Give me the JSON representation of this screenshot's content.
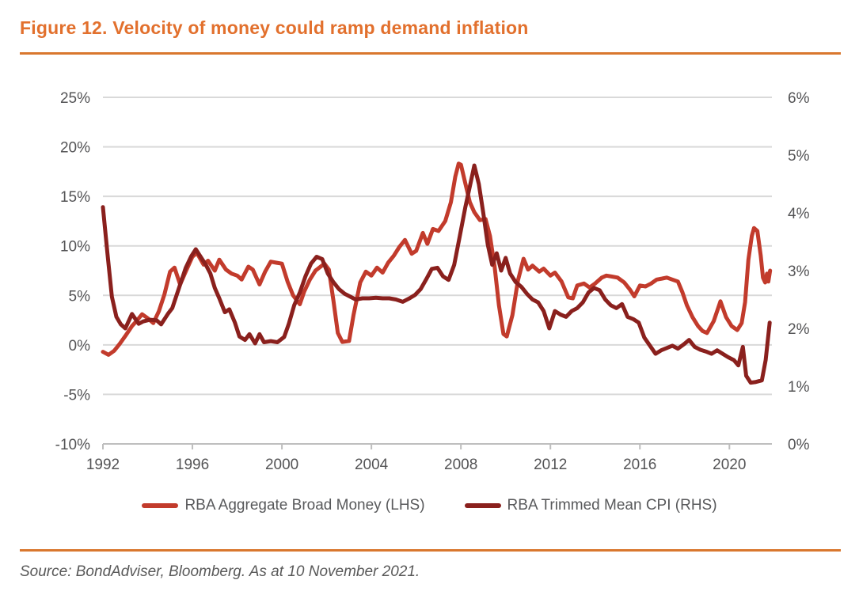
{
  "header": {
    "title": "Figure 12. Velocity of money could ramp demand inflation"
  },
  "footer": {
    "source": "Source: BondAdviser, Bloomberg. As at 10 November 2021."
  },
  "colors": {
    "accent_orange": "#E2702D",
    "rule_orange": "#D9772E",
    "axis_text": "#545456",
    "legend_text": "#58595B",
    "gridline": "#D9D9D9",
    "axis_line": "#BEBEBE",
    "background": "#FFFFFF"
  },
  "chart_data": {
    "type": "line",
    "title": "Figure 12. Velocity of money could ramp demand inflation",
    "grid": "horizontal",
    "legend_position": "bottom",
    "x_axis": {
      "range": [
        1992,
        2021.9
      ],
      "tick_values": [
        1992,
        1996,
        2000,
        2004,
        2008,
        2012,
        2016,
        2020
      ],
      "tick_labels": [
        "1992",
        "1996",
        "2000",
        "2004",
        "2008",
        "2012",
        "2016",
        "2020"
      ]
    },
    "left_axis": {
      "range": [
        -10,
        25
      ],
      "tick_values": [
        25,
        20,
        15,
        10,
        5,
        0,
        -5,
        -10
      ],
      "tick_labels": [
        "25%",
        "20%",
        "15%",
        "10%",
        "5%",
        "0%",
        "-5%",
        "-10%"
      ]
    },
    "right_axis": {
      "range": [
        0,
        6
      ],
      "tick_values": [
        6,
        5,
        4,
        3,
        2,
        1,
        0
      ],
      "tick_labels": [
        "6%",
        "5%",
        "4%",
        "3%",
        "2%",
        "1%",
        "0%"
      ]
    },
    "series": [
      {
        "name": "RBA Aggregate Broad Money (LHS)",
        "axis": "left",
        "color": "#C23B2C",
        "points": [
          [
            1992.0,
            -0.7
          ],
          [
            1992.25,
            -1.0
          ],
          [
            1992.5,
            -0.6
          ],
          [
            1992.75,
            0.1
          ],
          [
            1993.0,
            0.9
          ],
          [
            1993.3,
            1.9
          ],
          [
            1993.5,
            2.4
          ],
          [
            1993.75,
            3.1
          ],
          [
            1994.0,
            2.7
          ],
          [
            1994.25,
            2.2
          ],
          [
            1994.5,
            3.4
          ],
          [
            1994.75,
            5.1
          ],
          [
            1995.0,
            7.4
          ],
          [
            1995.2,
            7.8
          ],
          [
            1995.45,
            6.1
          ],
          [
            1995.7,
            7.4
          ],
          [
            1996.0,
            8.9
          ],
          [
            1996.2,
            9.3
          ],
          [
            1996.5,
            8.1
          ],
          [
            1996.7,
            8.5
          ],
          [
            1997.0,
            7.5
          ],
          [
            1997.2,
            8.6
          ],
          [
            1997.5,
            7.6
          ],
          [
            1997.75,
            7.2
          ],
          [
            1998.0,
            7.0
          ],
          [
            1998.2,
            6.6
          ],
          [
            1998.5,
            7.9
          ],
          [
            1998.7,
            7.6
          ],
          [
            1999.0,
            6.1
          ],
          [
            1999.25,
            7.4
          ],
          [
            1999.5,
            8.4
          ],
          [
            1999.75,
            8.3
          ],
          [
            2000.0,
            8.2
          ],
          [
            2000.25,
            6.4
          ],
          [
            2000.5,
            5.0
          ],
          [
            2000.8,
            4.1
          ],
          [
            2001.0,
            5.4
          ],
          [
            2001.25,
            6.6
          ],
          [
            2001.5,
            7.5
          ],
          [
            2001.9,
            8.2
          ],
          [
            2002.1,
            7.6
          ],
          [
            2002.3,
            4.5
          ],
          [
            2002.5,
            1.2
          ],
          [
            2002.7,
            0.3
          ],
          [
            2003.0,
            0.4
          ],
          [
            2003.2,
            3.0
          ],
          [
            2003.5,
            6.3
          ],
          [
            2003.75,
            7.4
          ],
          [
            2004.0,
            7.0
          ],
          [
            2004.25,
            7.8
          ],
          [
            2004.5,
            7.3
          ],
          [
            2004.75,
            8.3
          ],
          [
            2005.0,
            9.0
          ],
          [
            2005.25,
            9.9
          ],
          [
            2005.5,
            10.6
          ],
          [
            2005.8,
            9.2
          ],
          [
            2006.0,
            9.5
          ],
          [
            2006.3,
            11.3
          ],
          [
            2006.5,
            10.2
          ],
          [
            2006.75,
            11.7
          ],
          [
            2007.0,
            11.5
          ],
          [
            2007.3,
            12.5
          ],
          [
            2007.55,
            14.4
          ],
          [
            2007.75,
            17.0
          ],
          [
            2007.9,
            18.3
          ],
          [
            2008.0,
            18.2
          ],
          [
            2008.2,
            16.3
          ],
          [
            2008.4,
            14.4
          ],
          [
            2008.6,
            13.4
          ],
          [
            2008.85,
            12.6
          ],
          [
            2009.1,
            12.7
          ],
          [
            2009.3,
            11.0
          ],
          [
            2009.5,
            8.0
          ],
          [
            2009.7,
            4.0
          ],
          [
            2009.9,
            1.1
          ],
          [
            2010.05,
            0.85
          ],
          [
            2010.3,
            3.0
          ],
          [
            2010.55,
            6.5
          ],
          [
            2010.8,
            8.7
          ],
          [
            2011.0,
            7.6
          ],
          [
            2011.2,
            8.0
          ],
          [
            2011.5,
            7.4
          ],
          [
            2011.7,
            7.7
          ],
          [
            2012.0,
            7.0
          ],
          [
            2012.2,
            7.3
          ],
          [
            2012.5,
            6.4
          ],
          [
            2012.8,
            4.8
          ],
          [
            2013.0,
            4.7
          ],
          [
            2013.2,
            6.0
          ],
          [
            2013.5,
            6.2
          ],
          [
            2013.75,
            5.8
          ],
          [
            2014.0,
            6.2
          ],
          [
            2014.3,
            6.8
          ],
          [
            2014.5,
            7.0
          ],
          [
            2014.75,
            6.9
          ],
          [
            2015.0,
            6.8
          ],
          [
            2015.3,
            6.3
          ],
          [
            2015.55,
            5.6
          ],
          [
            2015.75,
            4.9
          ],
          [
            2016.0,
            6.0
          ],
          [
            2016.25,
            5.9
          ],
          [
            2016.5,
            6.2
          ],
          [
            2016.75,
            6.6
          ],
          [
            2017.0,
            6.7
          ],
          [
            2017.2,
            6.8
          ],
          [
            2017.45,
            6.6
          ],
          [
            2017.7,
            6.4
          ],
          [
            2017.9,
            5.3
          ],
          [
            2018.1,
            4.0
          ],
          [
            2018.35,
            2.8
          ],
          [
            2018.6,
            1.9
          ],
          [
            2018.8,
            1.4
          ],
          [
            2019.0,
            1.2
          ],
          [
            2019.3,
            2.4
          ],
          [
            2019.6,
            4.4
          ],
          [
            2019.85,
            2.8
          ],
          [
            2020.1,
            1.9
          ],
          [
            2020.35,
            1.5
          ],
          [
            2020.55,
            2.2
          ],
          [
            2020.7,
            4.3
          ],
          [
            2020.85,
            8.6
          ],
          [
            2021.0,
            11.0
          ],
          [
            2021.1,
            11.8
          ],
          [
            2021.25,
            11.5
          ],
          [
            2021.4,
            9.0
          ],
          [
            2021.5,
            6.8
          ],
          [
            2021.6,
            6.3
          ],
          [
            2021.68,
            7.2
          ],
          [
            2021.74,
            6.4
          ],
          [
            2021.82,
            7.5
          ]
        ]
      },
      {
        "name": "RBA Trimmed Mean CPI (RHS)",
        "axis": "right",
        "color": "#8A201D",
        "points": [
          [
            1992.0,
            4.1
          ],
          [
            1992.2,
            3.3
          ],
          [
            1992.4,
            2.55
          ],
          [
            1992.6,
            2.2
          ],
          [
            1992.8,
            2.07
          ],
          [
            1993.0,
            2.0
          ],
          [
            1993.3,
            2.25
          ],
          [
            1993.6,
            2.08
          ],
          [
            1993.8,
            2.12
          ],
          [
            1994.1,
            2.15
          ],
          [
            1994.4,
            2.14
          ],
          [
            1994.6,
            2.07
          ],
          [
            1994.9,
            2.25
          ],
          [
            1995.1,
            2.35
          ],
          [
            1995.4,
            2.7
          ],
          [
            1995.7,
            3.05
          ],
          [
            1995.95,
            3.25
          ],
          [
            1996.15,
            3.37
          ],
          [
            1996.4,
            3.22
          ],
          [
            1996.6,
            3.1
          ],
          [
            1996.8,
            2.95
          ],
          [
            1997.0,
            2.7
          ],
          [
            1997.2,
            2.52
          ],
          [
            1997.45,
            2.28
          ],
          [
            1997.65,
            2.33
          ],
          [
            1997.9,
            2.1
          ],
          [
            1998.1,
            1.86
          ],
          [
            1998.35,
            1.8
          ],
          [
            1998.55,
            1.9
          ],
          [
            1998.8,
            1.74
          ],
          [
            1999.0,
            1.9
          ],
          [
            1999.2,
            1.76
          ],
          [
            1999.5,
            1.78
          ],
          [
            1999.8,
            1.76
          ],
          [
            2000.1,
            1.85
          ],
          [
            2000.3,
            2.07
          ],
          [
            2000.55,
            2.4
          ],
          [
            2000.8,
            2.62
          ],
          [
            2001.05,
            2.9
          ],
          [
            2001.3,
            3.12
          ],
          [
            2001.55,
            3.24
          ],
          [
            2001.8,
            3.2
          ],
          [
            2002.05,
            2.95
          ],
          [
            2002.3,
            2.8
          ],
          [
            2002.55,
            2.68
          ],
          [
            2002.8,
            2.6
          ],
          [
            2003.05,
            2.55
          ],
          [
            2003.3,
            2.5
          ],
          [
            2003.6,
            2.52
          ],
          [
            2003.9,
            2.52
          ],
          [
            2004.2,
            2.53
          ],
          [
            2004.5,
            2.52
          ],
          [
            2004.8,
            2.52
          ],
          [
            2005.1,
            2.5
          ],
          [
            2005.4,
            2.46
          ],
          [
            2005.7,
            2.52
          ],
          [
            2005.95,
            2.58
          ],
          [
            2006.2,
            2.68
          ],
          [
            2006.45,
            2.85
          ],
          [
            2006.7,
            3.03
          ],
          [
            2006.95,
            3.05
          ],
          [
            2007.2,
            2.9
          ],
          [
            2007.45,
            2.84
          ],
          [
            2007.7,
            3.1
          ],
          [
            2007.95,
            3.6
          ],
          [
            2008.2,
            4.1
          ],
          [
            2008.45,
            4.55
          ],
          [
            2008.6,
            4.82
          ],
          [
            2008.8,
            4.5
          ],
          [
            2009.0,
            4.0
          ],
          [
            2009.2,
            3.45
          ],
          [
            2009.4,
            3.1
          ],
          [
            2009.6,
            3.3
          ],
          [
            2009.8,
            3.0
          ],
          [
            2010.0,
            3.22
          ],
          [
            2010.2,
            2.95
          ],
          [
            2010.45,
            2.8
          ],
          [
            2010.7,
            2.72
          ],
          [
            2010.95,
            2.6
          ],
          [
            2011.2,
            2.5
          ],
          [
            2011.45,
            2.45
          ],
          [
            2011.7,
            2.3
          ],
          [
            2011.95,
            2.0
          ],
          [
            2012.2,
            2.3
          ],
          [
            2012.45,
            2.24
          ],
          [
            2012.7,
            2.2
          ],
          [
            2012.95,
            2.3
          ],
          [
            2013.2,
            2.35
          ],
          [
            2013.45,
            2.45
          ],
          [
            2013.7,
            2.62
          ],
          [
            2013.95,
            2.7
          ],
          [
            2014.2,
            2.66
          ],
          [
            2014.45,
            2.5
          ],
          [
            2014.7,
            2.4
          ],
          [
            2014.95,
            2.35
          ],
          [
            2015.2,
            2.42
          ],
          [
            2015.45,
            2.2
          ],
          [
            2015.7,
            2.16
          ],
          [
            2015.95,
            2.1
          ],
          [
            2016.2,
            1.84
          ],
          [
            2016.45,
            1.7
          ],
          [
            2016.7,
            1.56
          ],
          [
            2016.95,
            1.62
          ],
          [
            2017.2,
            1.66
          ],
          [
            2017.45,
            1.7
          ],
          [
            2017.7,
            1.65
          ],
          [
            2017.95,
            1.72
          ],
          [
            2018.2,
            1.8
          ],
          [
            2018.45,
            1.68
          ],
          [
            2018.7,
            1.63
          ],
          [
            2018.95,
            1.6
          ],
          [
            2019.2,
            1.56
          ],
          [
            2019.45,
            1.62
          ],
          [
            2019.7,
            1.56
          ],
          [
            2019.95,
            1.5
          ],
          [
            2020.2,
            1.45
          ],
          [
            2020.4,
            1.36
          ],
          [
            2020.6,
            1.68
          ],
          [
            2020.75,
            1.18
          ],
          [
            2020.95,
            1.06
          ],
          [
            2021.15,
            1.07
          ],
          [
            2021.45,
            1.1
          ],
          [
            2021.62,
            1.45
          ],
          [
            2021.8,
            2.1
          ]
        ]
      }
    ]
  }
}
